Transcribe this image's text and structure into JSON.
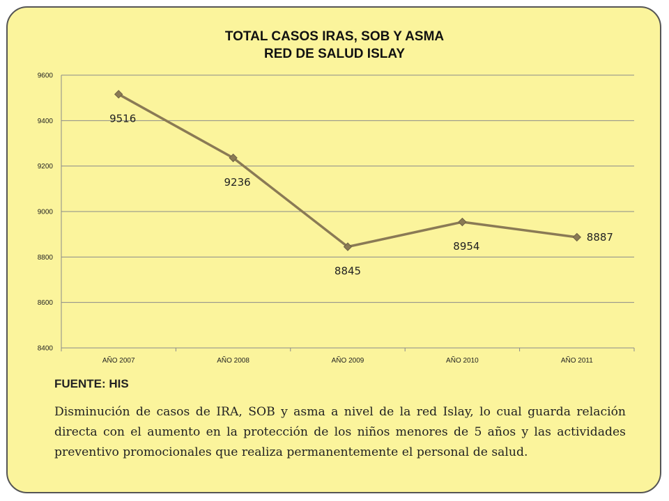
{
  "slide": {
    "background_color": "#fbf49c",
    "border_color": "#555555",
    "source_label": "FUENTE: HIS",
    "description": "Disminución de casos de IRA, SOB y asma a nivel de la red Islay, lo cual guarda relación directa con el aumento en la protección de los niños menores de 5 años y las actividades preventivo promocionales que realiza permanentemente el personal de salud."
  },
  "chart_data": {
    "type": "line",
    "title_line1": "TOTAL CASOS  IRAS, SOB Y ASMA",
    "title_line2": "RED DE SALUD ISLAY",
    "categories": [
      "AÑO 2007",
      "AÑO 2008",
      "AÑO 2009",
      "AÑO 2010",
      "AÑO 2011"
    ],
    "series": [
      {
        "values": [
          9516,
          9236,
          8845,
          8954,
          8887
        ],
        "color": "#8a7a55",
        "marker": "diamond"
      }
    ],
    "data_labels": [
      "9516",
      "9236",
      "8845",
      "8954",
      "8887"
    ],
    "ylim": [
      8400,
      9600
    ],
    "yticks": [
      8400,
      8600,
      8800,
      9000,
      9200,
      9400,
      9600
    ],
    "grid": true,
    "legend": "none"
  }
}
